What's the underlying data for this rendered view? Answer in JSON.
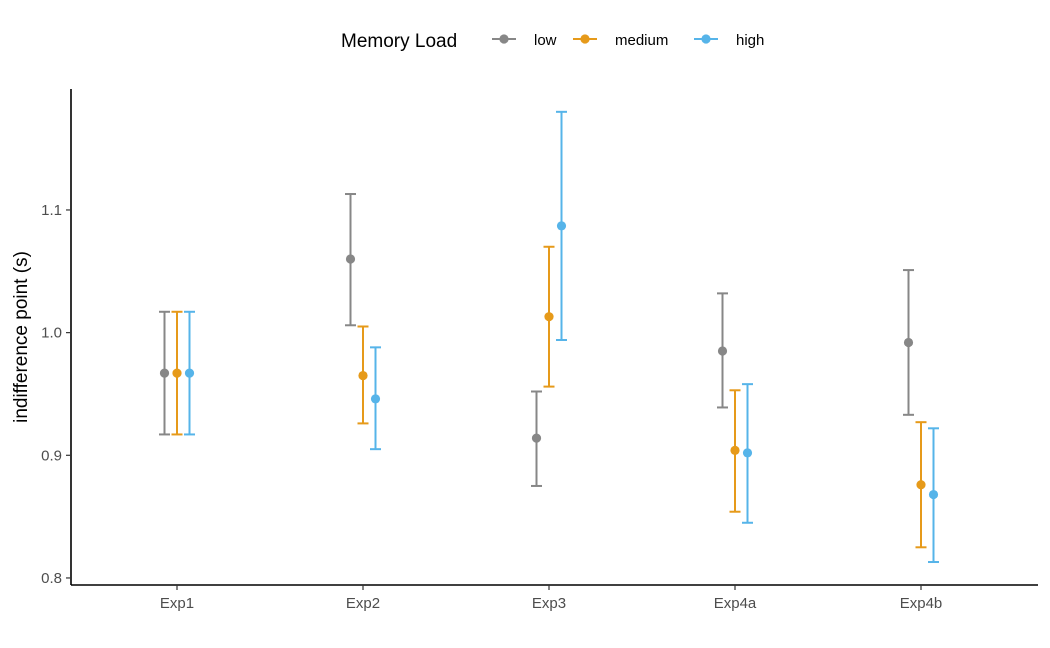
{
  "chart_data": {
    "type": "scatter",
    "subtype": "point-with-error-bars",
    "categories": [
      "Exp1",
      "Exp2",
      "Exp3",
      "Exp4a",
      "Exp4b"
    ],
    "ylabel": "indifference point (s)",
    "xlabel": "",
    "ylim": [
      0.795,
      1.195
    ],
    "yticks": [
      0.8,
      0.9,
      1.0,
      1.1
    ],
    "ytick_labels": [
      "0.8",
      "0.9",
      "1.0",
      "1.1"
    ],
    "grid": false,
    "legend": {
      "title": "Memory Load",
      "position": "top"
    },
    "series": [
      {
        "name": "low",
        "color": "#878787",
        "values": [
          0.967,
          1.06,
          0.914,
          0.985,
          0.992
        ],
        "lower": [
          0.917,
          1.006,
          0.875,
          0.939,
          0.933
        ],
        "upper": [
          1.017,
          1.113,
          0.952,
          1.032,
          1.051
        ]
      },
      {
        "name": "medium",
        "color": "#E69A1A",
        "values": [
          0.967,
          0.965,
          1.013,
          0.904,
          0.876
        ],
        "lower": [
          0.917,
          0.926,
          0.956,
          0.854,
          0.825
        ],
        "upper": [
          1.017,
          1.005,
          1.07,
          0.953,
          0.927
        ]
      },
      {
        "name": "high",
        "color": "#56B4E9",
        "values": [
          0.967,
          0.946,
          1.087,
          0.902,
          0.868
        ],
        "lower": [
          0.917,
          0.905,
          0.994,
          0.845,
          0.813
        ],
        "upper": [
          1.017,
          0.988,
          1.18,
          0.958,
          0.922
        ]
      }
    ]
  }
}
